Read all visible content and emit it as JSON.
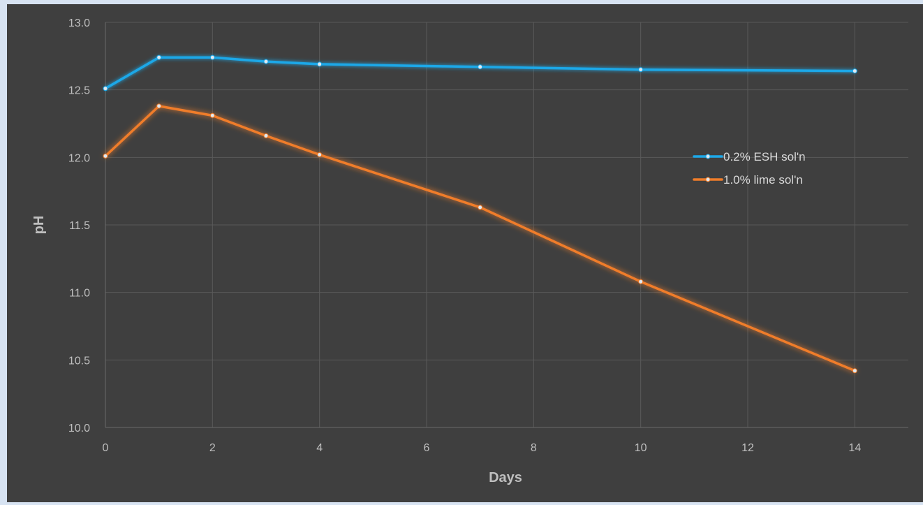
{
  "chart_data": {
    "type": "line",
    "title": "",
    "xlabel": "Days",
    "ylabel": "pH",
    "xlim": [
      0,
      15
    ],
    "ylim": [
      10.0,
      13.0
    ],
    "x_ticks": [
      0,
      2,
      4,
      6,
      8,
      10,
      12,
      14
    ],
    "y_ticks": [
      10.0,
      10.5,
      11.0,
      11.5,
      12.0,
      12.5,
      13.0
    ],
    "x_tick_labels": [
      "0",
      "2",
      "4",
      "6",
      "8",
      "10",
      "12",
      "14"
    ],
    "y_tick_labels": [
      "10.0",
      "10.5",
      "11.0",
      "11.5",
      "12.0",
      "12.5",
      "13.0"
    ],
    "grid": true,
    "legend_position": "right",
    "series": [
      {
        "name": "0.2% ESH sol'n",
        "color": "#1ca8e8",
        "x": [
          0,
          1,
          2,
          3,
          4,
          7,
          10,
          14
        ],
        "y": [
          12.51,
          12.74,
          12.74,
          12.71,
          12.69,
          12.67,
          12.65,
          12.64
        ]
      },
      {
        "name": "1.0% lime sol'n",
        "color": "#f07d2a",
        "x": [
          0,
          1,
          2,
          3,
          4,
          7,
          10,
          14
        ],
        "y": [
          12.01,
          12.38,
          12.31,
          12.16,
          12.02,
          11.63,
          11.08,
          10.42
        ]
      }
    ]
  }
}
